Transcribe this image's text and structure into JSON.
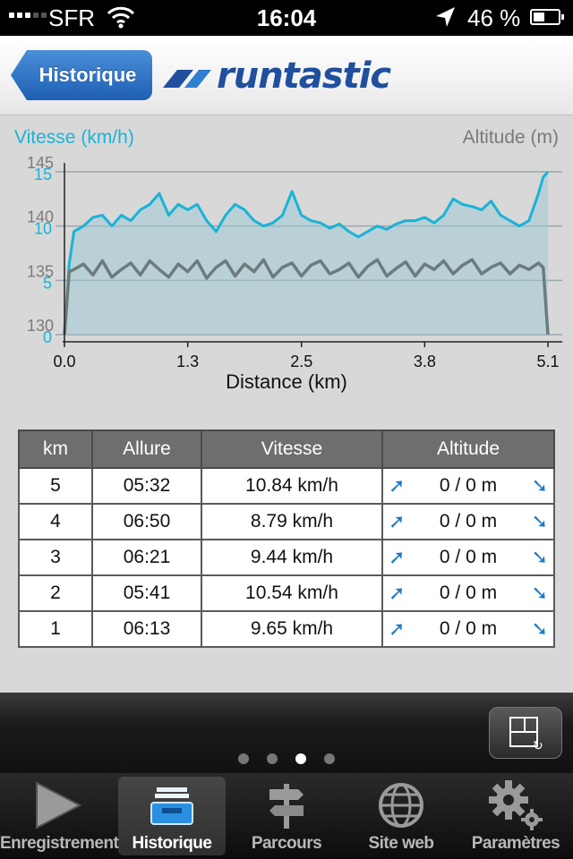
{
  "status_bar": {
    "carrier": "SFR",
    "time": "16:04",
    "battery": "46 %",
    "battery_level": 0.46
  },
  "nav": {
    "back_label": "Historique",
    "logo_text": "runtastic"
  },
  "chart": {
    "left_title": "Vitesse (km/h)",
    "right_title": "Altitude (m)"
  },
  "chart_data": {
    "type": "line",
    "xlabel": "Distance (km)",
    "x_ticks": [
      "0.0",
      "1.3",
      "2.5",
      "3.8",
      "5.1"
    ],
    "xlim": [
      0,
      5.1
    ],
    "y_left": {
      "label": "Vitesse (km/h)",
      "ticks": [
        0,
        5,
        10,
        15
      ],
      "ylim": [
        0,
        15
      ],
      "color": "#1ab3d6"
    },
    "y_right": {
      "label": "Altitude (m)",
      "ticks": [
        130,
        135,
        140,
        145
      ],
      "ylim": [
        130,
        145
      ],
      "color": "#7a7a7a"
    },
    "grid": true,
    "series": [
      {
        "axis": "left",
        "color": "#1ab3d6",
        "x": [
          0.0,
          0.05,
          0.1,
          0.2,
          0.3,
          0.4,
          0.5,
          0.6,
          0.7,
          0.8,
          0.9,
          1.0,
          1.1,
          1.2,
          1.3,
          1.4,
          1.5,
          1.6,
          1.7,
          1.8,
          1.9,
          2.0,
          2.1,
          2.2,
          2.3,
          2.4,
          2.5,
          2.6,
          2.7,
          2.8,
          2.9,
          3.0,
          3.1,
          3.2,
          3.3,
          3.4,
          3.5,
          3.6,
          3.7,
          3.8,
          3.9,
          4.0,
          4.1,
          4.2,
          4.3,
          4.4,
          4.5,
          4.6,
          4.7,
          4.8,
          4.9,
          5.0,
          5.05,
          5.1
        ],
        "y": [
          0,
          6.5,
          9.5,
          10,
          10.8,
          11,
          10,
          11,
          10.5,
          11.5,
          12,
          13,
          11,
          12,
          11.5,
          12,
          10.5,
          9.5,
          11,
          12,
          11.5,
          10.5,
          10,
          10.3,
          11,
          13.2,
          11,
          10.5,
          10.3,
          9.8,
          10.2,
          9.5,
          9,
          9.5,
          10,
          9.7,
          10.2,
          10.5,
          10.5,
          10.8,
          10.3,
          11,
          12.5,
          12,
          11.8,
          11.5,
          12.3,
          11,
          10.5,
          10,
          10.5,
          13,
          14.5,
          15
        ]
      },
      {
        "axis": "right",
        "color": "#6c7b7d",
        "x": [
          0.0,
          0.05,
          0.1,
          0.2,
          0.3,
          0.4,
          0.5,
          0.6,
          0.7,
          0.8,
          0.9,
          1.0,
          1.1,
          1.2,
          1.3,
          1.4,
          1.5,
          1.6,
          1.7,
          1.8,
          1.9,
          2.0,
          2.1,
          2.2,
          2.3,
          2.4,
          2.5,
          2.6,
          2.7,
          2.8,
          2.9,
          3.0,
          3.1,
          3.2,
          3.3,
          3.4,
          3.5,
          3.6,
          3.7,
          3.8,
          3.9,
          4.0,
          4.1,
          4.2,
          4.3,
          4.4,
          4.5,
          4.6,
          4.7,
          4.8,
          4.9,
          5.0,
          5.05,
          5.1
        ],
        "y": [
          130,
          135.8,
          136,
          136.5,
          135.5,
          136.8,
          135.3,
          136,
          136.6,
          135.5,
          136.8,
          136,
          135.3,
          136.5,
          135.8,
          136.8,
          135.2,
          136.2,
          136.8,
          135.4,
          136.5,
          135.8,
          136.9,
          135.3,
          136.2,
          136.6,
          135.4,
          136.4,
          136.8,
          135.6,
          136,
          136.6,
          135.3,
          136.3,
          136.9,
          135.4,
          136.1,
          136.7,
          135.4,
          136.5,
          136,
          136.8,
          135.6,
          136.4,
          136.9,
          135.6,
          136.2,
          136.6,
          135.6,
          136.4,
          136,
          136.6,
          136.2,
          130
        ]
      }
    ]
  },
  "table": {
    "headers": [
      "km",
      "Allure",
      "Vitesse",
      "Altitude"
    ],
    "rows": [
      {
        "km": "5",
        "pace": "05:32",
        "speed": "10.84 km/h",
        "altitude": "0 / 0 m"
      },
      {
        "km": "4",
        "pace": "06:50",
        "speed": "8.79 km/h",
        "altitude": "0 / 0 m"
      },
      {
        "km": "3",
        "pace": "06:21",
        "speed": "9.44 km/h",
        "altitude": "0 / 0 m"
      },
      {
        "km": "2",
        "pace": "05:41",
        "speed": "10.54 km/h",
        "altitude": "0 / 0 m"
      },
      {
        "km": "1",
        "pace": "06:13",
        "speed": "9.65 km/h",
        "altitude": "0 / 0 m"
      }
    ],
    "up_arrow": "➚",
    "down_arrow": "➘"
  },
  "pager": {
    "count": 4,
    "active": 3
  },
  "tabs": [
    {
      "label": "Enregistrement",
      "icon": "play-icon"
    },
    {
      "label": "Historique",
      "icon": "inbox-tray-icon",
      "selected": true
    },
    {
      "label": "Parcours",
      "icon": "signpost-icon"
    },
    {
      "label": "Site web",
      "icon": "globe-icon"
    },
    {
      "label": "Paramètres",
      "icon": "gears-icon"
    }
  ]
}
